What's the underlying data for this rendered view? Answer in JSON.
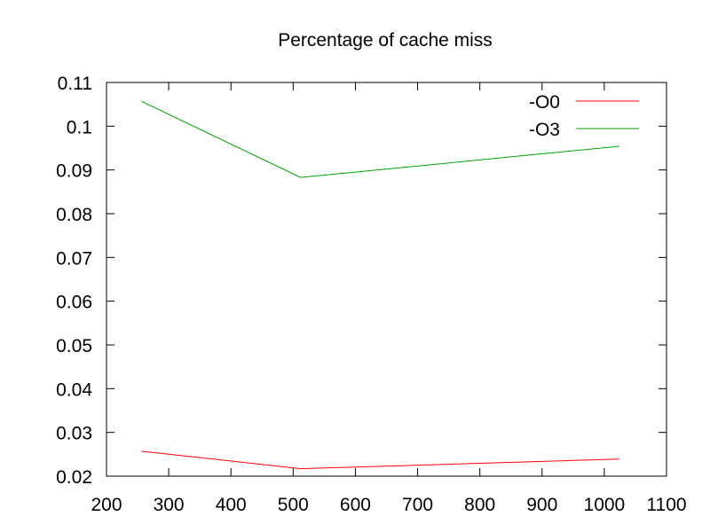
{
  "chart_data": {
    "type": "line",
    "title": "Percentage of cache miss",
    "xlabel": "",
    "ylabel": "",
    "xlim": [
      200,
      1100
    ],
    "ylim": [
      0.02,
      0.11
    ],
    "x_ticks": [
      200,
      300,
      400,
      500,
      600,
      700,
      800,
      900,
      1000,
      1100
    ],
    "y_ticks": [
      0.02,
      0.03,
      0.04,
      0.05,
      0.06,
      0.07,
      0.08,
      0.09,
      0.1,
      0.11
    ],
    "x_tick_labels": [
      "200",
      "300",
      "400",
      "500",
      "600",
      "700",
      "800",
      "900",
      "1000",
      "1100"
    ],
    "y_tick_labels": [
      "0.02",
      "0.03",
      "0.04",
      "0.05",
      "0.06",
      "0.07",
      "0.08",
      "0.09",
      "0.1",
      "0.11"
    ],
    "grid": false,
    "legend_position": "top-right",
    "series": [
      {
        "name": "-O0",
        "color": "#ff0000",
        "x": [
          256,
          512,
          1024
        ],
        "y": [
          0.0257,
          0.0217,
          0.0239
        ]
      },
      {
        "name": "-O3",
        "color": "#00a000",
        "x": [
          256,
          512,
          1024
        ],
        "y": [
          0.1057,
          0.0883,
          0.0954
        ]
      }
    ]
  }
}
